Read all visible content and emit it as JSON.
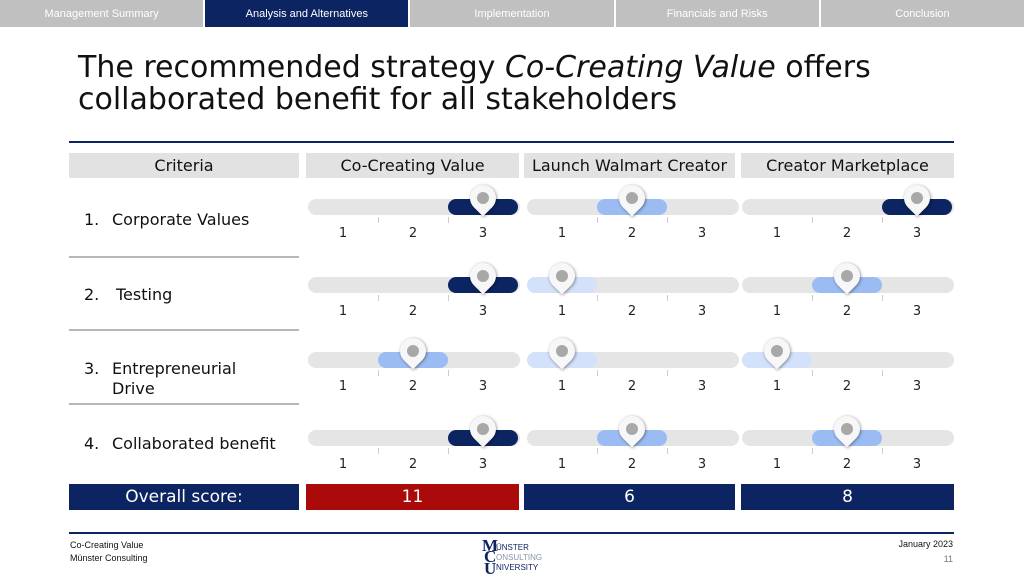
{
  "nav": {
    "tabs": [
      {
        "label": "Management Summary",
        "active": false
      },
      {
        "label": "Analysis and Alternatives",
        "active": true
      },
      {
        "label": "Implementation",
        "active": false
      },
      {
        "label": "Financials and Risks",
        "active": false
      },
      {
        "label": "Conclusion",
        "active": false
      }
    ]
  },
  "title": {
    "part1": "The recommended strategy ",
    "emphasis": "Co-Creating Value",
    "part2": " offers collaborated benefit for all stakeholders"
  },
  "table": {
    "criteria_header": "Criteria",
    "options": [
      "Co-Creating Value",
      "Launch Walmart Creator",
      "Creator Marketplace"
    ],
    "criteria": [
      {
        "number": "1.",
        "label": "Corporate Values",
        "scores": [
          3,
          2,
          3
        ]
      },
      {
        "number": "2.",
        "label": "Testing",
        "scores": [
          3,
          1,
          2
        ]
      },
      {
        "number": "3.",
        "label": "Entrepreneurial Drive",
        "scores": [
          2,
          1,
          1
        ]
      },
      {
        "number": "4.",
        "label": "Collaborated benefit",
        "scores": [
          3,
          2,
          2
        ]
      }
    ],
    "scale": [
      "1",
      "2",
      "3"
    ],
    "overall_label": "Overall score:",
    "overall_scores": [
      "11",
      "6",
      "8"
    ]
  },
  "colors": {
    "navy": "#0c2461",
    "light_blue": "#9bbcf3",
    "pale_blue": "#d3e1fb",
    "winner_red": "#aa0a0a",
    "track_grey": "#e5e5e5"
  },
  "footer": {
    "line1": "Co-Creating Value",
    "line2": "Münster Consulting",
    "date": "January 2023",
    "page": "11",
    "logo_text": [
      "ÜNSTER",
      "ONSULTING",
      "NIVERSITY"
    ]
  }
}
